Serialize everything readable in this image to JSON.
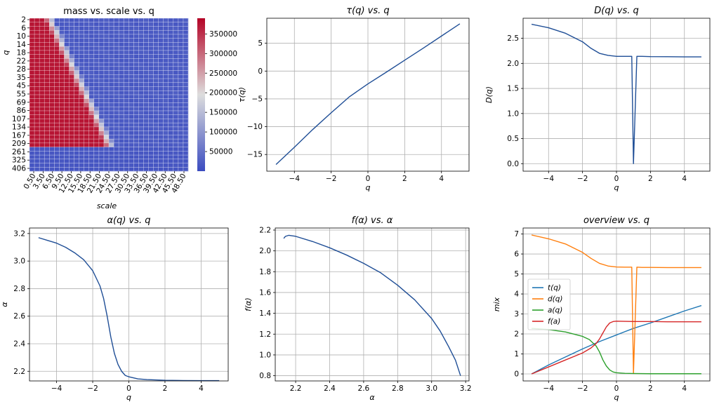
{
  "chart_data": [
    {
      "type": "heatmap",
      "title": "mass vs. scale vs. q",
      "xlabel": "scale",
      "ylabel": "q",
      "x_ticklabels": [
        "0.50",
        "3.50",
        "6.50",
        "9.50",
        "12.50",
        "15.50",
        "18.50",
        "21.50",
        "24.50",
        "27.50",
        "30.50",
        "33.50",
        "36.50",
        "39.50",
        "42.50",
        "45.50",
        "48.50"
      ],
      "y_ticklabels": [
        "2",
        "6",
        "10",
        "14",
        "18",
        "22",
        "28",
        "35",
        "45",
        "55",
        "69",
        "86",
        "107",
        "134",
        "167",
        "209",
        "261",
        "325",
        "406"
      ],
      "colorbar_ticks": [
        50000,
        100000,
        150000,
        200000,
        250000,
        300000,
        350000
      ],
      "colorbar_ticklabels": [
        "50000",
        "100000",
        "150000",
        "200000",
        "250000",
        "300000",
        "350000"
      ],
      "value_range": [
        0,
        390000
      ],
      "colormap": [
        "#3b4cc0",
        "#dddddd",
        "#b40426"
      ],
      "n_cols": 32,
      "n_rows": 38
    },
    {
      "type": "line",
      "title": "τ(q) vs. q",
      "xlabel": "q",
      "ylabel": "τ(q)",
      "xlim": [
        -5.5,
        5.5
      ],
      "ylim": [
        -18,
        9.5
      ],
      "xticks": [
        -4,
        -2,
        0,
        2,
        4
      ],
      "xticklabels": [
        "−4",
        "−2",
        "0",
        "2",
        "4"
      ],
      "yticks": [
        -15,
        -10,
        -5,
        0,
        5
      ],
      "yticklabels": [
        "−15",
        "−10",
        "−5",
        "0",
        "5"
      ],
      "series": [
        {
          "color": "#1f4e96",
          "x": [
            -5,
            -4,
            -3,
            -2,
            -1,
            0,
            1,
            2,
            3,
            4,
            5
          ],
          "y": [
            -16.8,
            -13.7,
            -10.5,
            -7.5,
            -4.6,
            -2.3,
            -0.2,
            1.95,
            4.1,
            6.3,
            8.5
          ]
        }
      ]
    },
    {
      "type": "line",
      "title": "D(q) vs. q",
      "xlabel": "q",
      "ylabel": "D(q)",
      "xlim": [
        -5.5,
        5.5
      ],
      "ylim": [
        -0.15,
        2.9
      ],
      "xticks": [
        -4,
        -2,
        0,
        2,
        4
      ],
      "xticklabels": [
        "−4",
        "−2",
        "0",
        "2",
        "4"
      ],
      "yticks": [
        0,
        0.5,
        1.0,
        1.5,
        2.0,
        2.5
      ],
      "yticklabels": [
        "0.0",
        "0.5",
        "1.0",
        "1.5",
        "2.0",
        "2.5"
      ],
      "series": [
        {
          "color": "#1f4e96",
          "x": [
            -5,
            -4,
            -3,
            -2,
            -1.5,
            -1,
            -0.5,
            0,
            0.5,
            0.9,
            1.0,
            1.2,
            1.5,
            2,
            3,
            4,
            5
          ],
          "y": [
            2.78,
            2.71,
            2.6,
            2.43,
            2.3,
            2.2,
            2.16,
            2.14,
            2.14,
            2.14,
            0.0,
            2.14,
            2.14,
            2.135,
            2.133,
            2.13,
            2.13
          ]
        }
      ]
    },
    {
      "type": "line",
      "title": "α(q) vs. q",
      "xlabel": "q",
      "ylabel": "α",
      "xlim": [
        -5.5,
        5.5
      ],
      "ylim": [
        2.13,
        3.24
      ],
      "xticks": [
        -4,
        -2,
        0,
        2,
        4
      ],
      "xticklabels": [
        "−4",
        "−2",
        "0",
        "2",
        "4"
      ],
      "yticks": [
        2.2,
        2.4,
        2.6,
        2.8,
        3.0,
        3.2
      ],
      "yticklabels": [
        "2.2",
        "2.4",
        "2.6",
        "2.8",
        "3.0",
        "3.2"
      ],
      "series": [
        {
          "color": "#1f4e96",
          "x": [
            -5,
            -4.5,
            -4,
            -3.5,
            -3,
            -2.5,
            -2,
            -1.6,
            -1.4,
            -1.2,
            -1.0,
            -0.8,
            -0.6,
            -0.4,
            -0.2,
            0,
            0.5,
            1,
            2,
            3,
            4,
            5
          ],
          "y": [
            3.17,
            3.15,
            3.13,
            3.1,
            3.06,
            3.01,
            2.93,
            2.82,
            2.73,
            2.6,
            2.45,
            2.33,
            2.25,
            2.2,
            2.17,
            2.16,
            2.145,
            2.14,
            2.135,
            2.133,
            2.132,
            2.132
          ]
        }
      ]
    },
    {
      "type": "line",
      "title": "f(α) vs. α",
      "xlabel": "α",
      "ylabel": "f(α)",
      "xlim": [
        2.08,
        3.22
      ],
      "ylim": [
        0.75,
        2.22
      ],
      "xticks": [
        2.2,
        2.4,
        2.6,
        2.8,
        3.0,
        3.2
      ],
      "xticklabels": [
        "2.2",
        "2.4",
        "2.6",
        "2.8",
        "3.0",
        "3.2"
      ],
      "yticks": [
        0.8,
        1.0,
        1.2,
        1.4,
        1.6,
        1.8,
        2.0,
        2.2
      ],
      "yticklabels": [
        "0.8",
        "1.0",
        "1.2",
        "1.4",
        "1.6",
        "1.8",
        "2.0",
        "2.2"
      ],
      "series": [
        {
          "color": "#1f4e96",
          "x": [
            2.13,
            2.14,
            2.16,
            2.2,
            2.3,
            2.4,
            2.5,
            2.6,
            2.7,
            2.8,
            2.9,
            3.0,
            3.05,
            3.1,
            3.14,
            3.17
          ],
          "y": [
            2.12,
            2.14,
            2.15,
            2.14,
            2.09,
            2.03,
            1.96,
            1.88,
            1.79,
            1.67,
            1.53,
            1.35,
            1.23,
            1.08,
            0.95,
            0.8
          ]
        }
      ]
    },
    {
      "type": "line",
      "title": "overview vs. q",
      "xlabel": "q",
      "ylabel": "mix",
      "xlim": [
        -5.5,
        5.5
      ],
      "ylim": [
        -0.35,
        7.3
      ],
      "xticks": [
        -4,
        -2,
        0,
        2,
        4
      ],
      "xticklabels": [
        "−4",
        "−2",
        "0",
        "2",
        "4"
      ],
      "yticks": [
        0,
        1,
        2,
        3,
        4,
        5,
        6,
        7
      ],
      "yticklabels": [
        "0",
        "1",
        "2",
        "3",
        "4",
        "5",
        "6",
        "7"
      ],
      "legend": "center-left",
      "series": [
        {
          "name": "t(q)",
          "color": "#1f77b4",
          "x": [
            -5,
            -4,
            -3,
            -2,
            -1,
            0,
            1,
            2,
            3,
            4,
            5
          ],
          "y": [
            0.0,
            0.45,
            0.85,
            1.25,
            1.62,
            1.95,
            2.28,
            2.55,
            2.85,
            3.15,
            3.42
          ]
        },
        {
          "name": "d(q)",
          "color": "#ff7f0e",
          "x": [
            -5,
            -4,
            -3,
            -2,
            -1.5,
            -1,
            -0.5,
            0,
            0.5,
            0.9,
            1.0,
            1.2,
            1.5,
            2,
            3,
            4,
            5
          ],
          "y": [
            6.95,
            6.76,
            6.5,
            6.08,
            5.78,
            5.53,
            5.4,
            5.35,
            5.34,
            5.34,
            0.02,
            5.34,
            5.33,
            5.33,
            5.32,
            5.32,
            5.32
          ]
        },
        {
          "name": "a(q)",
          "color": "#2ca02c",
          "x": [
            -5,
            -4,
            -3,
            -2,
            -1.6,
            -1.2,
            -1.0,
            -0.8,
            -0.6,
            -0.4,
            -0.2,
            0,
            0.5,
            1,
            2,
            3,
            4,
            5
          ],
          "y": [
            2.28,
            2.22,
            2.1,
            1.88,
            1.72,
            1.4,
            1.1,
            0.7,
            0.4,
            0.2,
            0.1,
            0.06,
            0.03,
            0.02,
            0.01,
            0.01,
            0.01,
            0.01
          ]
        },
        {
          "name": "f(a)",
          "color": "#d62728",
          "x": [
            -5,
            -4,
            -3,
            -2,
            -1.5,
            -1.2,
            -1.0,
            -0.8,
            -0.6,
            -0.4,
            -0.2,
            0,
            0.5,
            1,
            2,
            3,
            4,
            5
          ],
          "y": [
            0.0,
            0.35,
            0.7,
            1.05,
            1.3,
            1.52,
            1.75,
            2.05,
            2.35,
            2.55,
            2.62,
            2.64,
            2.63,
            2.62,
            2.62,
            2.61,
            2.61,
            2.61
          ]
        }
      ]
    }
  ]
}
